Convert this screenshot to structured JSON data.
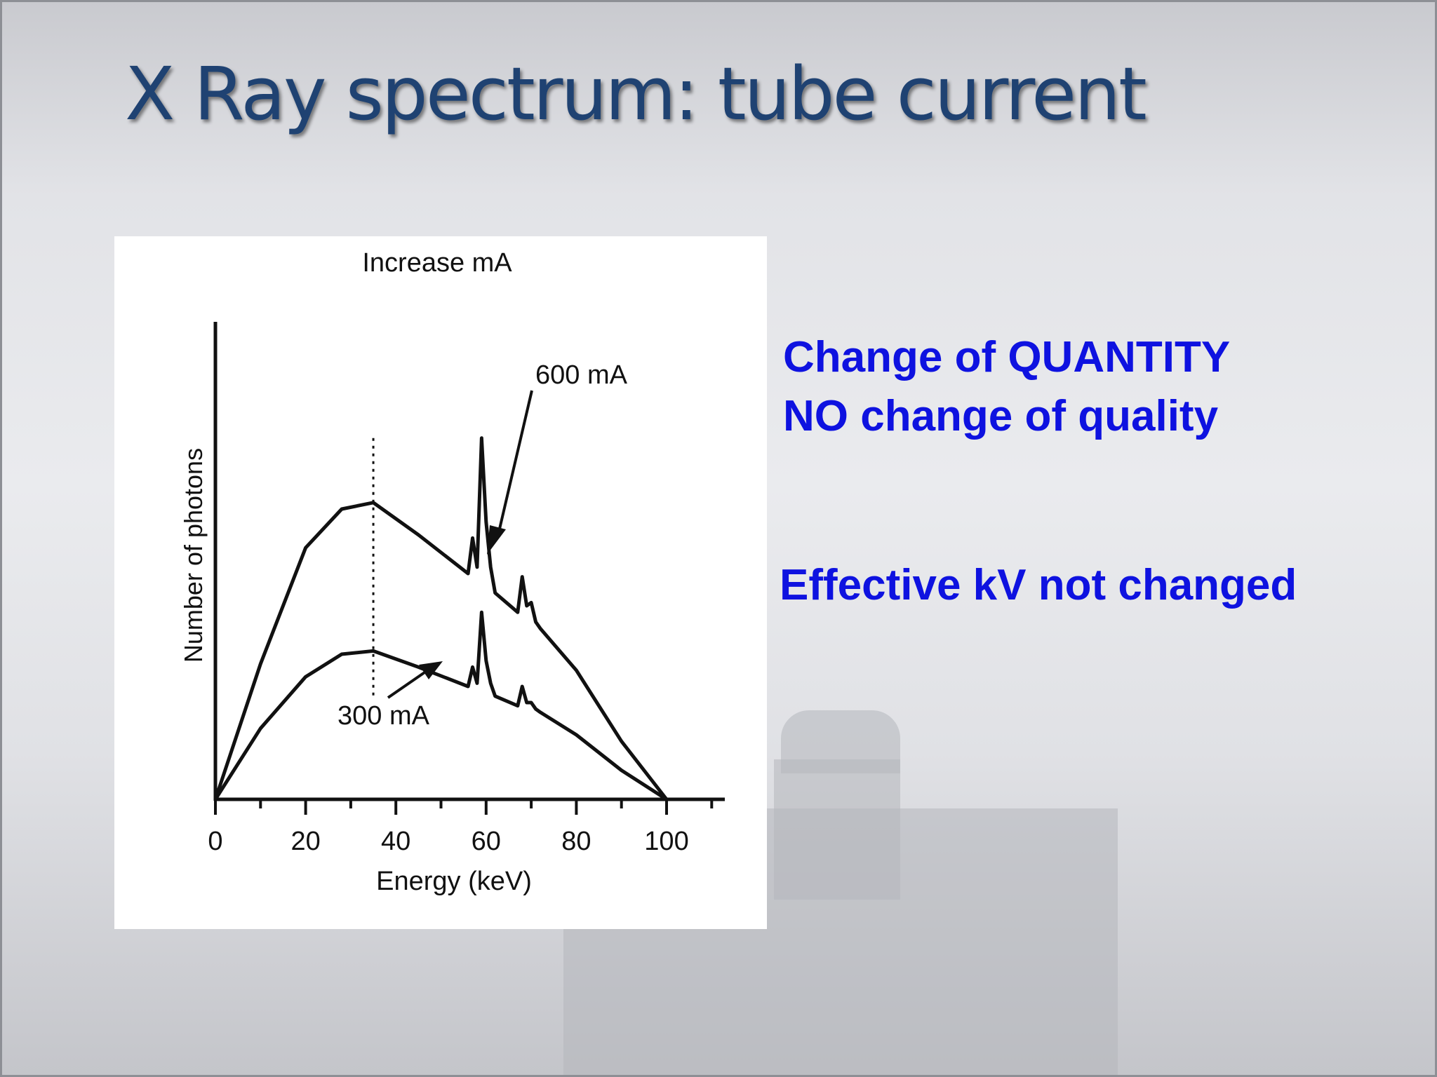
{
  "slide": {
    "title": "X Ray spectrum: tube current",
    "notes": [
      "Change of QUANTITY",
      "NO change of quality",
      "Effective kV not changed"
    ],
    "text_color": "#0e12e0",
    "title_color": "#1f4272"
  },
  "chart_data": {
    "type": "line",
    "title": "Increase mA",
    "xlabel": "Energy (keV)",
    "ylabel": "Number of photons",
    "xlim": [
      0,
      115
    ],
    "ylim": [
      0,
      120
    ],
    "x_ticks": [
      0,
      20,
      40,
      60,
      80,
      100
    ],
    "grid": false,
    "reference_line": {
      "x": 35,
      "style": "dotted"
    },
    "series": [
      {
        "name": "600 mA",
        "points": [
          [
            0,
            0
          ],
          [
            10,
            42
          ],
          [
            20,
            78
          ],
          [
            28,
            90
          ],
          [
            35,
            92
          ],
          [
            45,
            82
          ],
          [
            56,
            70
          ],
          [
            57,
            81
          ],
          [
            58,
            72
          ],
          [
            59,
            112
          ],
          [
            60,
            86
          ],
          [
            61,
            72
          ],
          [
            62,
            64
          ],
          [
            67,
            58
          ],
          [
            68,
            69
          ],
          [
            69,
            60
          ],
          [
            70,
            61
          ],
          [
            71,
            55
          ],
          [
            72,
            53
          ],
          [
            80,
            40
          ],
          [
            90,
            18
          ],
          [
            100,
            0
          ]
        ]
      },
      {
        "name": "300 mA",
        "points": [
          [
            0,
            0
          ],
          [
            10,
            22
          ],
          [
            20,
            38
          ],
          [
            28,
            45
          ],
          [
            35,
            46
          ],
          [
            45,
            41
          ],
          [
            56,
            35
          ],
          [
            57,
            41
          ],
          [
            58,
            36
          ],
          [
            59,
            58
          ],
          [
            60,
            43
          ],
          [
            61,
            36
          ],
          [
            62,
            32
          ],
          [
            67,
            29
          ],
          [
            68,
            35
          ],
          [
            69,
            30
          ],
          [
            70,
            30
          ],
          [
            71,
            28
          ],
          [
            72,
            27
          ],
          [
            80,
            20
          ],
          [
            90,
            9
          ],
          [
            100,
            0
          ]
        ]
      }
    ],
    "annotations": [
      {
        "text": "600 mA",
        "points_to_series": "600 mA"
      },
      {
        "text": "300 mA",
        "points_to_series": "300 mA"
      }
    ]
  }
}
